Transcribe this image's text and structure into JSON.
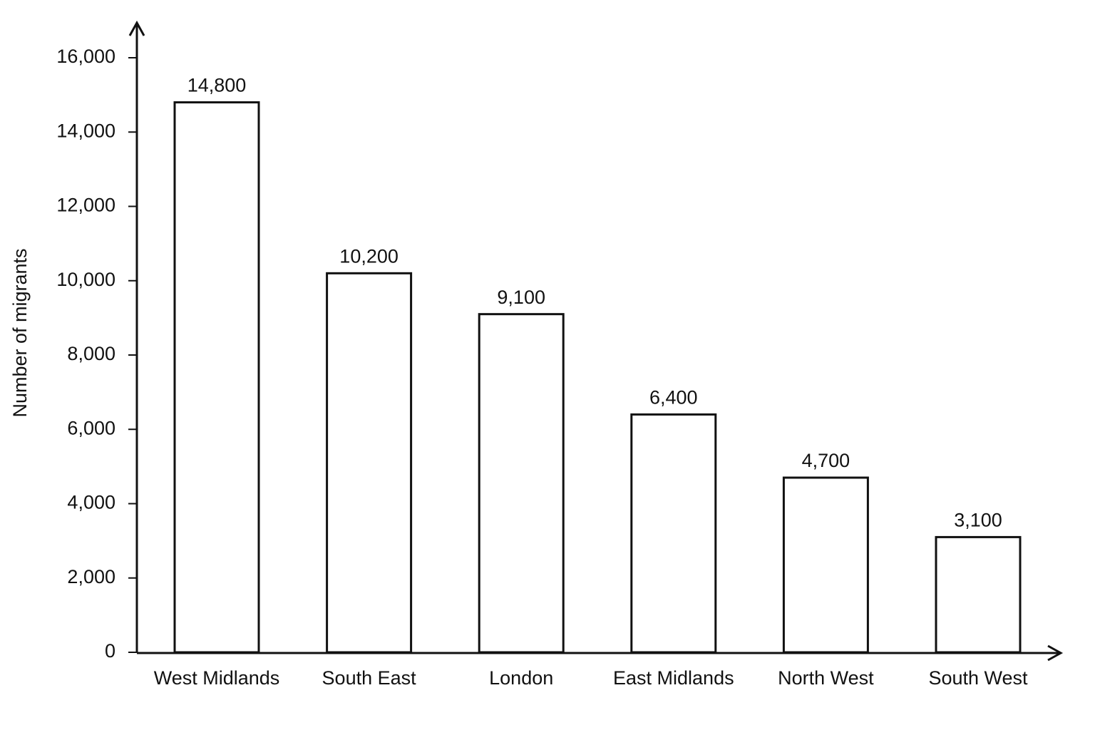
{
  "chart_data": {
    "type": "bar",
    "y_label": "Number of migrants",
    "categories": [
      "West Midlands",
      "South East",
      "London",
      "East Midlands",
      "North West",
      "South West"
    ],
    "values": [
      14800,
      10200,
      9100,
      6400,
      4700,
      3100
    ],
    "value_labels": [
      "14,800",
      "10,200",
      "9,100",
      "6,400",
      "4,700",
      "3,100"
    ],
    "color": "#ffffff",
    "ylim": [
      0,
      16000
    ],
    "yticks": [
      0,
      {
        "value": 2000,
        "label": "2,000"
      },
      {
        "value": 4000,
        "label": "4,000"
      },
      {
        "value": 6000,
        "label": "6,000"
      },
      {
        "value": 8000,
        "label": "8,000"
      },
      {
        "value": 10000,
        "label": "10,000"
      },
      {
        "value": 12000,
        "label": "12,000"
      },
      {
        "value": 14000,
        "label": "14,000"
      },
      {
        "value": 16000,
        "label": "16,000"
      }
    ],
    "grid": false
  }
}
